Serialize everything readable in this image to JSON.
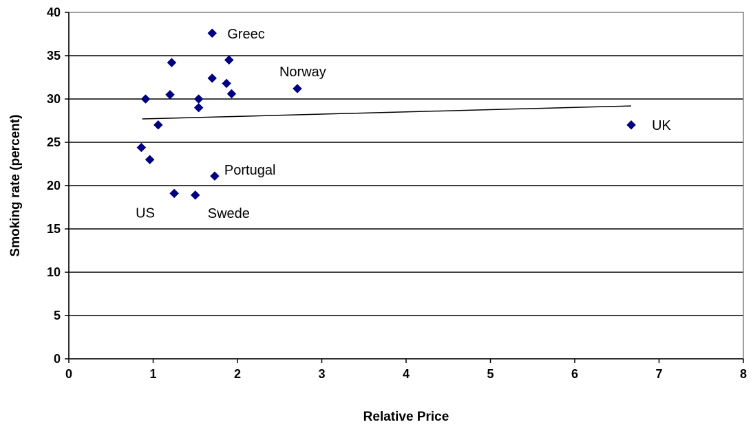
{
  "chart_data": {
    "type": "scatter",
    "title": "",
    "xlabel": "Relative Price",
    "ylabel": "Smoking rate (percent)",
    "xlim": [
      0,
      8
    ],
    "ylim": [
      0,
      40
    ],
    "x_ticks": [
      "0",
      "1",
      "2",
      "3",
      "4",
      "5",
      "6",
      "7",
      "8"
    ],
    "y_ticks": [
      "0",
      "5",
      "10",
      "15",
      "20",
      "25",
      "30",
      "35",
      "40"
    ],
    "grid": "horizontal",
    "legend": "none",
    "marker_color": "#000080",
    "trendline": {
      "x": [
        0.87,
        6.67
      ],
      "y": [
        27.7,
        29.2
      ]
    },
    "points": [
      {
        "x": 1.7,
        "y": 37.6,
        "label": "Greec"
      },
      {
        "x": 1.22,
        "y": 34.2,
        "label": ""
      },
      {
        "x": 1.9,
        "y": 34.5,
        "label": ""
      },
      {
        "x": 1.7,
        "y": 32.4,
        "label": ""
      },
      {
        "x": 1.87,
        "y": 31.8,
        "label": ""
      },
      {
        "x": 2.71,
        "y": 31.2,
        "label": "Norway"
      },
      {
        "x": 1.2,
        "y": 30.5,
        "label": ""
      },
      {
        "x": 1.93,
        "y": 30.6,
        "label": ""
      },
      {
        "x": 0.91,
        "y": 30.0,
        "label": ""
      },
      {
        "x": 1.54,
        "y": 30.0,
        "label": ""
      },
      {
        "x": 1.54,
        "y": 29.0,
        "label": ""
      },
      {
        "x": 1.06,
        "y": 27.0,
        "label": ""
      },
      {
        "x": 6.67,
        "y": 27.0,
        "label": "UK"
      },
      {
        "x": 0.86,
        "y": 24.4,
        "label": ""
      },
      {
        "x": 0.96,
        "y": 23.0,
        "label": ""
      },
      {
        "x": 1.73,
        "y": 21.1,
        "label": "Portugal"
      },
      {
        "x": 1.25,
        "y": 19.1,
        "label": "US"
      },
      {
        "x": 1.5,
        "y": 18.9,
        "label": "Swede"
      }
    ]
  }
}
